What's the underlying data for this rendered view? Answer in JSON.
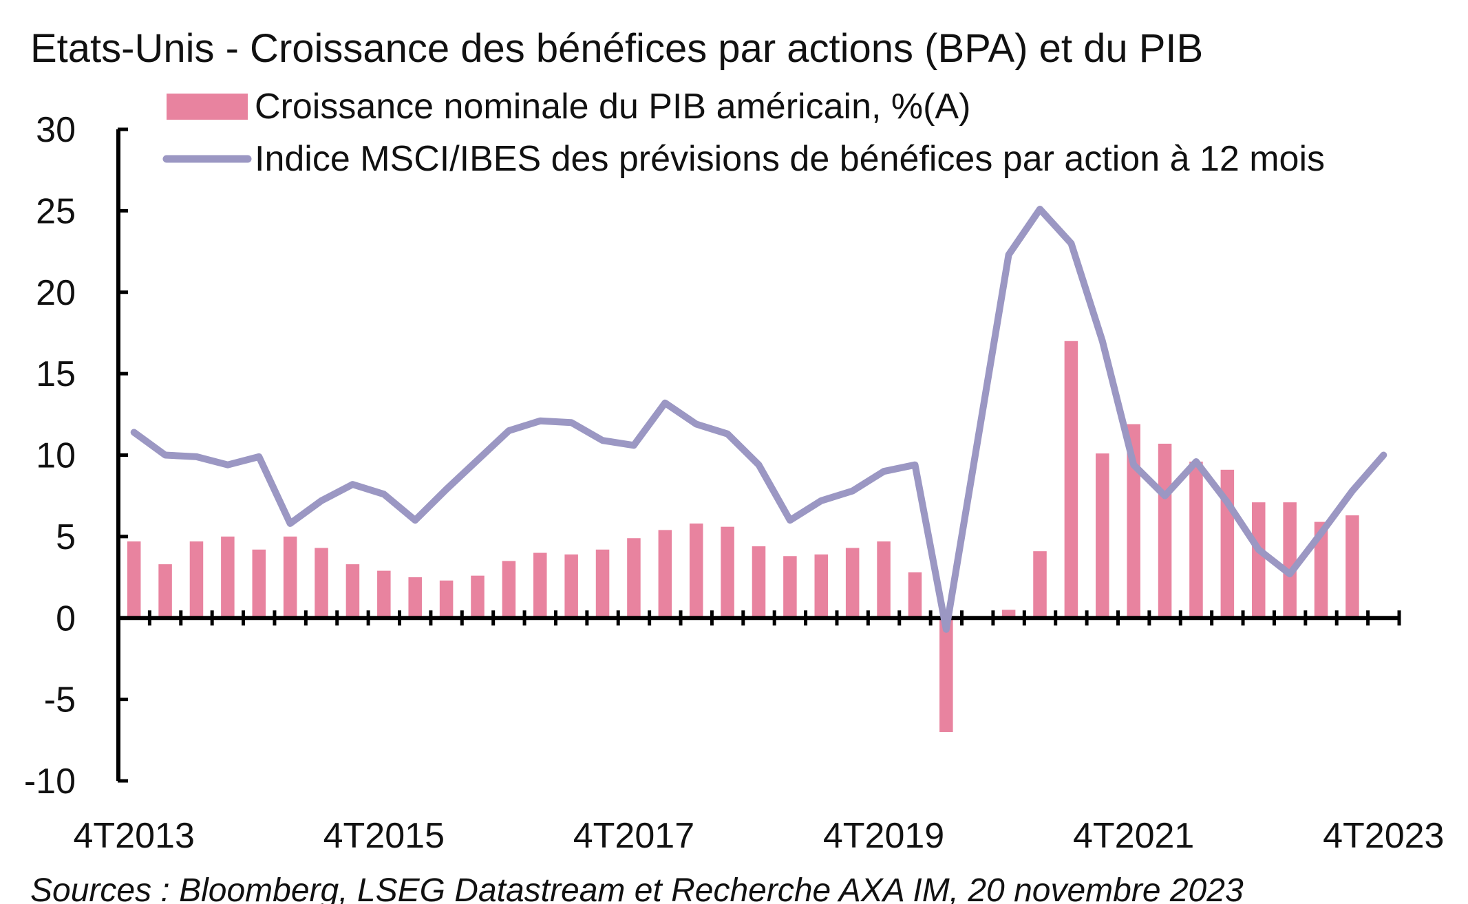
{
  "chart_data": {
    "type": "bar+line",
    "title": "Etats-Unis - Croissance des bénéfices par actions (BPA) et du PIB",
    "source": "Sources : Bloomberg, LSEG Datastream et Recherche AXA IM, 20 novembre 2023",
    "xlabel": "",
    "ylabel": "",
    "ylim": [
      -10,
      30
    ],
    "y_ticks": [
      "30",
      "25",
      "20",
      "15",
      "10",
      "5",
      "0",
      "-5",
      "-10"
    ],
    "x_tick_labels": [
      "4T2013",
      "4T2015",
      "4T2017",
      "4T2019",
      "4T2021",
      "4T2023"
    ],
    "x_tick_label_indices": [
      0,
      8,
      16,
      24,
      32,
      40
    ],
    "legend_position": "top",
    "categories": [
      "4T2013",
      "1T2014",
      "2T2014",
      "3T2014",
      "4T2014",
      "1T2015",
      "2T2015",
      "3T2015",
      "4T2015",
      "1T2016",
      "2T2016",
      "3T2016",
      "4T2016",
      "1T2017",
      "2T2017",
      "3T2017",
      "4T2017",
      "1T2018",
      "2T2018",
      "3T2018",
      "4T2018",
      "1T2019",
      "2T2019",
      "3T2019",
      "4T2019",
      "1T2020",
      "2T2020",
      "3T2020",
      "4T2020",
      "1T2021",
      "2T2021",
      "3T2021",
      "4T2021",
      "1T2022",
      "2T2022",
      "3T2022",
      "4T2022",
      "1T2023",
      "2T2023",
      "3T2023",
      "4T2023"
    ],
    "series": [
      {
        "name": "Croissance nominale du PIB américain, %(A)",
        "type": "bar",
        "color": "#e8839f",
        "values": [
          4.7,
          3.3,
          4.7,
          5.0,
          4.2,
          5.0,
          4.3,
          3.3,
          2.9,
          2.5,
          2.3,
          2.6,
          3.5,
          4.0,
          3.9,
          4.2,
          4.9,
          5.4,
          5.8,
          5.6,
          4.4,
          3.8,
          3.9,
          4.3,
          4.7,
          2.8,
          -7.0,
          -0.1,
          0.5,
          4.1,
          17.0,
          10.1,
          11.9,
          10.7,
          9.6,
          9.1,
          7.1,
          7.1,
          5.9,
          6.3,
          null
        ]
      },
      {
        "name": "Indice MSCI/IBES des prévisions de bénéfices par action à 12 mois",
        "type": "line",
        "color": "#9b97c3",
        "values": [
          11.4,
          10.0,
          9.9,
          9.4,
          9.9,
          5.8,
          7.2,
          8.2,
          7.6,
          6.0,
          7.9,
          9.7,
          11.5,
          12.1,
          12.0,
          10.9,
          10.6,
          13.2,
          11.9,
          11.3,
          9.4,
          6.0,
          7.2,
          7.8,
          9.0,
          9.4,
          -0.7,
          10.8,
          22.3,
          25.1,
          23.0,
          17.0,
          9.4,
          7.5,
          9.6,
          7.1,
          4.2,
          2.7,
          5.2,
          7.8,
          10.0
        ]
      }
    ]
  }
}
